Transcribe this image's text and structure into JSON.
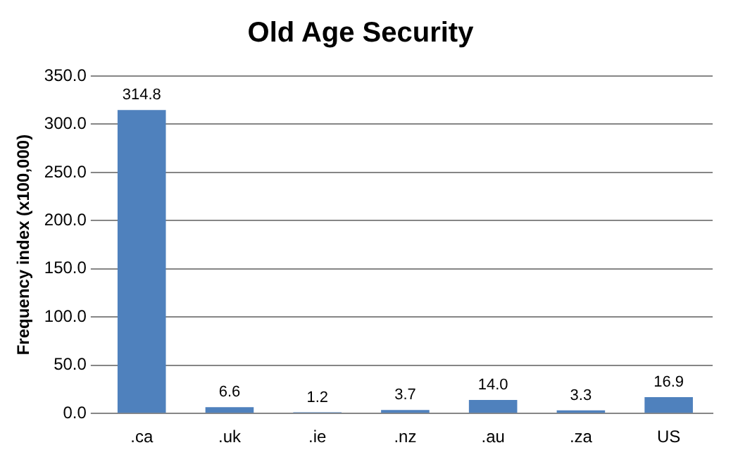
{
  "chart_data": {
    "type": "bar",
    "title": "Old Age Security",
    "ylabel": "Frequency index (x100,000)",
    "categories": [
      ".ca",
      ".uk",
      ".ie",
      ".nz",
      ".au",
      ".za",
      "US"
    ],
    "values": [
      314.8,
      6.6,
      1.2,
      3.7,
      14.0,
      3.3,
      16.9
    ],
    "value_labels": [
      "314.8",
      "6.6",
      "1.2",
      "3.7",
      "14.0",
      "3.3",
      "16.9"
    ],
    "color": "#4f81bd",
    "ylim": [
      0,
      350
    ],
    "yticks": [
      {
        "value": 0,
        "label": "0.0"
      },
      {
        "value": 50,
        "label": "50.0"
      },
      {
        "value": 100,
        "label": "100.0"
      },
      {
        "value": 150,
        "label": "150.0"
      },
      {
        "value": 200,
        "label": "200.0"
      },
      {
        "value": 250,
        "label": "250.0"
      },
      {
        "value": 300,
        "label": "300.0"
      },
      {
        "value": 350,
        "label": "350.0"
      }
    ],
    "grid": "y",
    "legend": false
  }
}
